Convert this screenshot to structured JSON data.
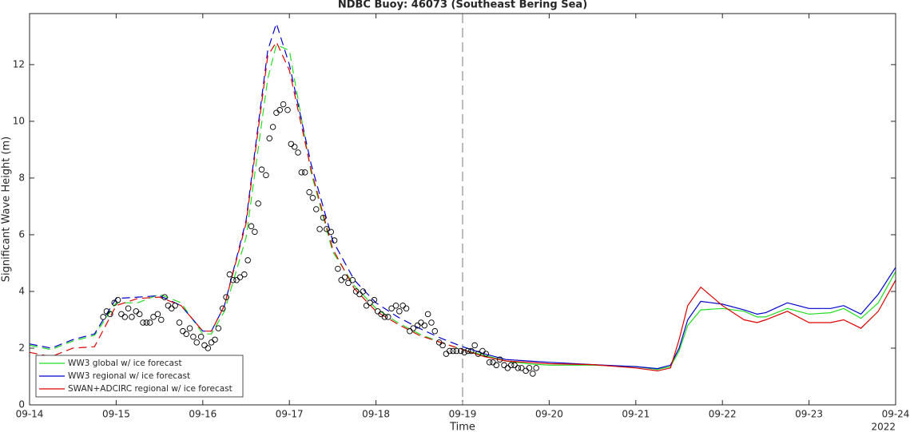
{
  "chart_data": {
    "type": "line",
    "title": "NDBC Buoy: 46073 (Southeast Bering Sea)",
    "x_label": "Time",
    "y_label": "Significant Wave Height (m)",
    "year_label": "2022",
    "xlim": [
      0,
      10
    ],
    "ylim": [
      0,
      13.8
    ],
    "xticks": [
      {
        "value": 0,
        "label": "09-14"
      },
      {
        "value": 1,
        "label": "09-15"
      },
      {
        "value": 2,
        "label": "09-16"
      },
      {
        "value": 3,
        "label": "09-17"
      },
      {
        "value": 4,
        "label": "09-18"
      },
      {
        "value": 5,
        "label": "09-19"
      },
      {
        "value": 6,
        "label": "09-20"
      },
      {
        "value": 7,
        "label": "09-21"
      },
      {
        "value": 8,
        "label": "09-22"
      },
      {
        "value": 9,
        "label": "09-23"
      },
      {
        "value": 10,
        "label": "09-24"
      }
    ],
    "yticks": [
      0,
      2,
      4,
      6,
      8,
      10,
      12
    ],
    "forecast_start": 5,
    "legend": "lower left",
    "x": [
      0,
      0.25,
      0.5,
      0.75,
      1,
      1.25,
      1.5,
      1.75,
      2,
      2.1,
      2.25,
      2.5,
      2.75,
      2.85,
      3,
      3.25,
      3.5,
      3.75,
      4,
      4.25,
      4.5,
      4.75,
      5,
      5.25,
      5.5,
      5.75,
      6,
      6.5,
      7,
      7.25,
      7.4,
      7.5,
      7.6,
      7.75,
      8,
      8.25,
      8.4,
      8.5,
      8.75,
      9,
      9.25,
      9.4,
      9.6,
      9.8,
      10
    ],
    "series": [
      {
        "name": "WW3 global w/ ice forecast",
        "color": "#22dd22",
        "values": [
          2.1,
          1.95,
          2.25,
          2.45,
          3.6,
          3.6,
          3.9,
          3.6,
          2.5,
          2.5,
          3.3,
          5.9,
          11.5,
          12.7,
          12.5,
          8.2,
          5.4,
          4.2,
          3.4,
          2.9,
          2.5,
          2.2,
          1.95,
          1.75,
          1.55,
          1.45,
          1.4,
          1.4,
          1.35,
          1.25,
          1.35,
          1.9,
          2.8,
          3.35,
          3.4,
          3.3,
          3.1,
          3.1,
          3.4,
          3.2,
          3.25,
          3.4,
          3.05,
          3.6,
          4.7
        ]
      },
      {
        "name": "WW3 regional w/ ice forecast",
        "color": "#0000cc",
        "values": [
          2.15,
          2.0,
          2.3,
          2.5,
          3.75,
          3.8,
          3.85,
          3.5,
          2.6,
          2.6,
          3.5,
          6.5,
          12.5,
          13.45,
          12.0,
          8.5,
          5.8,
          4.4,
          3.6,
          3.1,
          2.7,
          2.35,
          2.05,
          1.8,
          1.6,
          1.55,
          1.5,
          1.42,
          1.35,
          1.28,
          1.4,
          2.0,
          3.0,
          3.65,
          3.55,
          3.35,
          3.2,
          3.25,
          3.6,
          3.4,
          3.4,
          3.5,
          3.2,
          3.9,
          4.85
        ]
      },
      {
        "name": "SWAN+ADCIRC regional w/ ice forecast",
        "color": "#dd0000",
        "values": [
          1.85,
          1.7,
          2.0,
          2.05,
          3.5,
          3.75,
          3.8,
          3.5,
          2.6,
          2.6,
          3.5,
          6.4,
          12.3,
          12.8,
          11.8,
          8.3,
          5.5,
          4.1,
          3.3,
          2.85,
          2.45,
          2.2,
          1.95,
          1.7,
          1.55,
          1.5,
          1.45,
          1.42,
          1.3,
          1.2,
          1.3,
          2.3,
          3.5,
          4.15,
          3.5,
          3.0,
          2.9,
          3.0,
          3.3,
          2.9,
          2.9,
          3.0,
          2.7,
          3.3,
          4.4
        ]
      }
    ],
    "observations": {
      "color": "#000000",
      "x": [
        0.85,
        0.89,
        0.93,
        0.98,
        1.02,
        1.06,
        1.1,
        1.14,
        1.18,
        1.23,
        1.27,
        1.31,
        1.35,
        1.39,
        1.43,
        1.48,
        1.52,
        1.56,
        1.6,
        1.64,
        1.68,
        1.73,
        1.77,
        1.81,
        1.85,
        1.89,
        1.93,
        1.98,
        2.02,
        2.06,
        2.1,
        2.14,
        2.18,
        2.23,
        2.27,
        2.31,
        2.35,
        2.39,
        2.43,
        2.48,
        2.52,
        2.56,
        2.6,
        2.64,
        2.68,
        2.73,
        2.77,
        2.81,
        2.85,
        2.89,
        2.93,
        2.98,
        3.02,
        3.06,
        3.1,
        3.14,
        3.18,
        3.23,
        3.27,
        3.31,
        3.35,
        3.39,
        3.43,
        3.48,
        3.52,
        3.56,
        3.6,
        3.64,
        3.68,
        3.73,
        3.77,
        3.81,
        3.85,
        3.89,
        3.93,
        3.98,
        4.02,
        4.06,
        4.1,
        4.14,
        4.18,
        4.23,
        4.27,
        4.31,
        4.35,
        4.39,
        4.43,
        4.48,
        4.52,
        4.56,
        4.6,
        4.64,
        4.68,
        4.73,
        4.77,
        4.81,
        4.85,
        4.89,
        4.93,
        4.98,
        5.02,
        5.06,
        5.1,
        5.14,
        5.18,
        5.23,
        5.27,
        5.31,
        5.35,
        5.39,
        5.43,
        5.48,
        5.52,
        5.56,
        5.6,
        5.64,
        5.68,
        5.73,
        5.77,
        5.81,
        5.85
      ],
      "values": [
        3.1,
        3.3,
        3.2,
        3.6,
        3.7,
        3.2,
        3.1,
        3.4,
        3.1,
        3.3,
        3.2,
        2.9,
        2.9,
        2.9,
        3.1,
        3.2,
        3.0,
        3.8,
        3.5,
        3.4,
        3.5,
        2.9,
        2.6,
        2.5,
        2.7,
        2.4,
        2.2,
        2.4,
        2.1,
        2.0,
        2.2,
        2.3,
        2.7,
        3.4,
        3.8,
        4.6,
        4.4,
        4.4,
        4.5,
        4.6,
        5.1,
        6.3,
        6.1,
        7.1,
        8.3,
        8.1,
        9.4,
        9.8,
        10.3,
        10.4,
        10.6,
        10.4,
        9.2,
        9.1,
        8.9,
        8.2,
        8.2,
        7.5,
        7.3,
        6.9,
        6.2,
        6.6,
        6.2,
        6.1,
        5.8,
        4.8,
        4.4,
        4.5,
        4.3,
        4.4,
        4.0,
        3.9,
        4.0,
        3.5,
        3.6,
        3.7,
        3.3,
        3.2,
        3.1,
        3.1,
        3.4,
        3.5,
        3.3,
        3.5,
        3.4,
        2.6,
        2.7,
        2.8,
        2.9,
        2.8,
        3.2,
        2.9,
        2.6,
        2.2,
        2.1,
        1.8,
        1.9,
        1.9,
        1.9,
        1.9,
        1.85,
        1.9,
        1.9,
        2.1,
        1.8,
        1.9,
        1.8,
        1.5,
        1.5,
        1.4,
        1.6,
        1.4,
        1.3,
        1.4,
        1.4,
        1.3,
        1.3,
        1.2,
        1.3,
        1.1,
        1.3
      ]
    }
  }
}
